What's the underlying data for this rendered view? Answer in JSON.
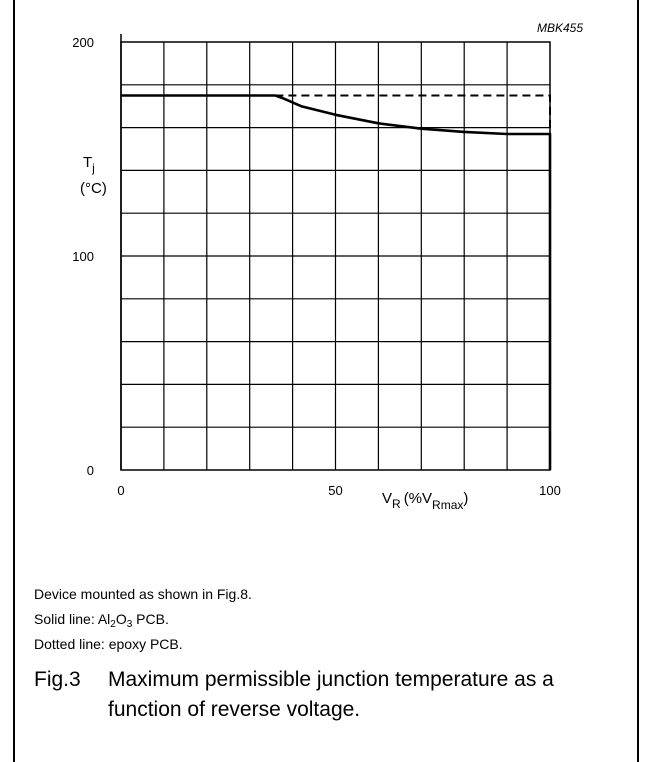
{
  "chart_data": {
    "type": "line",
    "id_label": "MBK455",
    "ylabel_symbol": "T",
    "ylabel_subscript": "j",
    "ylabel_unit": "(°C)",
    "xlabel_symbol": "V",
    "xlabel_subscript": "R",
    "xlabel_unit_open": "(%V",
    "xlabel_unit_subscript": "Rmax",
    "xlabel_unit_close": ")",
    "xlim": [
      0,
      100
    ],
    "ylim": [
      0,
      200
    ],
    "x_ticks": [
      "0",
      "50",
      "100"
    ],
    "y_ticks": [
      "0",
      "100",
      "200"
    ],
    "grid": true,
    "series": [
      {
        "style": "solid",
        "x": [
          0,
          36,
          38,
          42,
          50,
          60,
          70,
          80,
          90,
          100,
          100
        ],
        "y": [
          175,
          175,
          173.5,
          170,
          166,
          162,
          159.5,
          158,
          157,
          157,
          0
        ]
      },
      {
        "style": "dashed",
        "x": [
          36,
          100,
          100
        ],
        "y": [
          175,
          175,
          157
        ]
      }
    ]
  },
  "notes": {
    "line1": "Device mounted as shown in Fig.8.",
    "line2_prefix": "Solid line: Al",
    "line2_sub1": "2",
    "line2_mid": "O",
    "line2_sub2": "3",
    "line2_suffix": " PCB.",
    "line3": "Dotted line: epoxy PCB."
  },
  "caption": {
    "number": "Fig.3",
    "text": "Maximum permissible junction temperature as a function of reverse voltage."
  }
}
